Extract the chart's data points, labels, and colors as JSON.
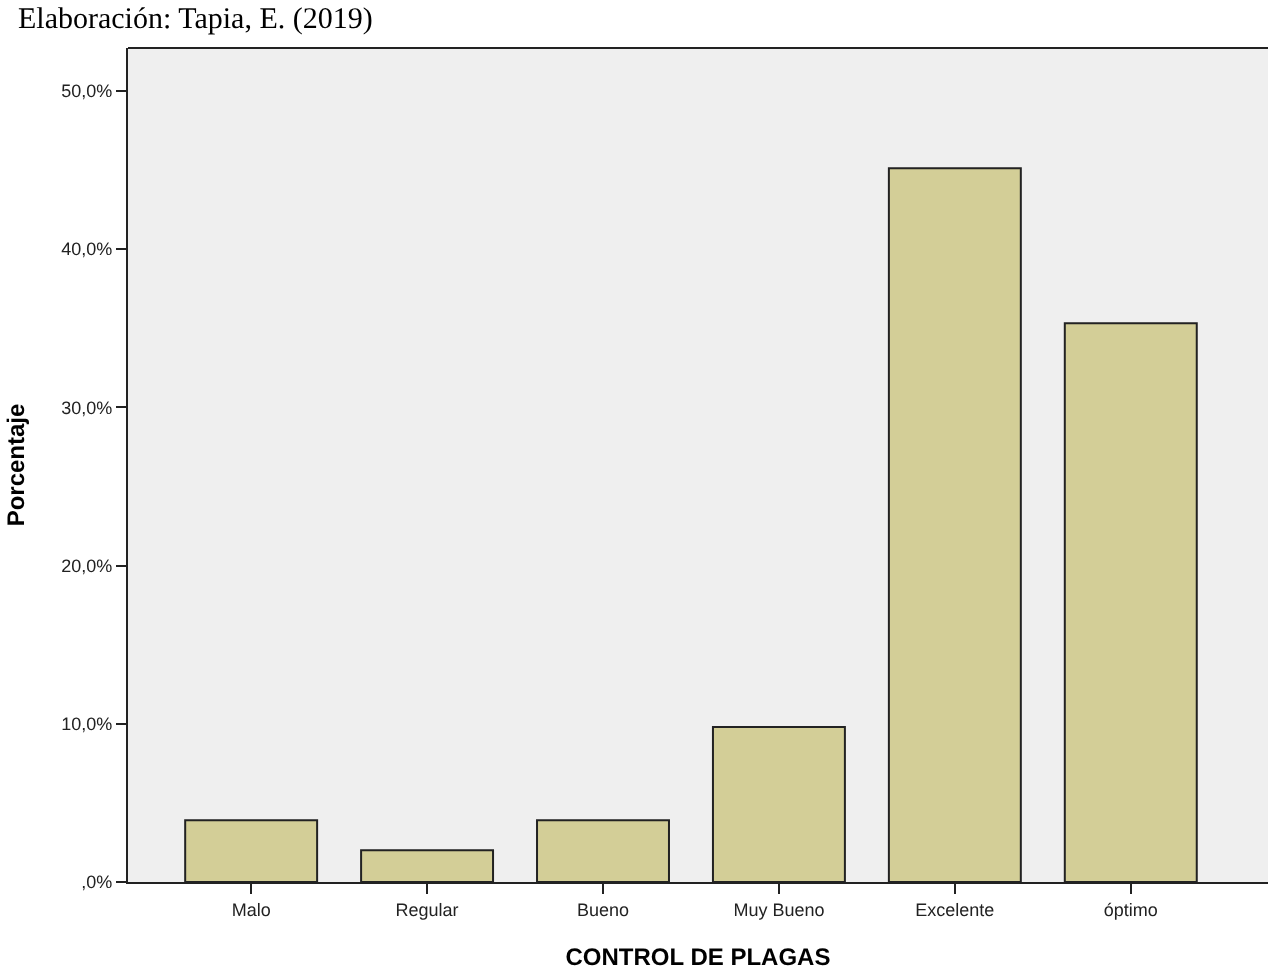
{
  "chart_data": {
    "type": "bar",
    "annotations": [
      "Elaboración: Tapia, E. (2019)"
    ],
    "xlabel": "CONTROL DE PLAGAS",
    "ylabel": "Porcentaje",
    "categories": [
      "Malo",
      "Regular",
      "Bueno",
      "Muy Bueno",
      "Excelente",
      "óptimo"
    ],
    "values": [
      3.9,
      2.0,
      3.9,
      9.8,
      45.1,
      35.3
    ],
    "color": "#d3ce97",
    "ylim": [
      0,
      52.7
    ],
    "yticks": [
      {
        "value": 0,
        "label": ",0%"
      },
      {
        "value": 10,
        "label": "10,0%"
      },
      {
        "value": 20,
        "label": "20,0%"
      },
      {
        "value": 30,
        "label": "30,0%"
      },
      {
        "value": 40,
        "label": "40,0%"
      },
      {
        "value": 50,
        "label": "50,0%"
      }
    ],
    "grid": false
  }
}
